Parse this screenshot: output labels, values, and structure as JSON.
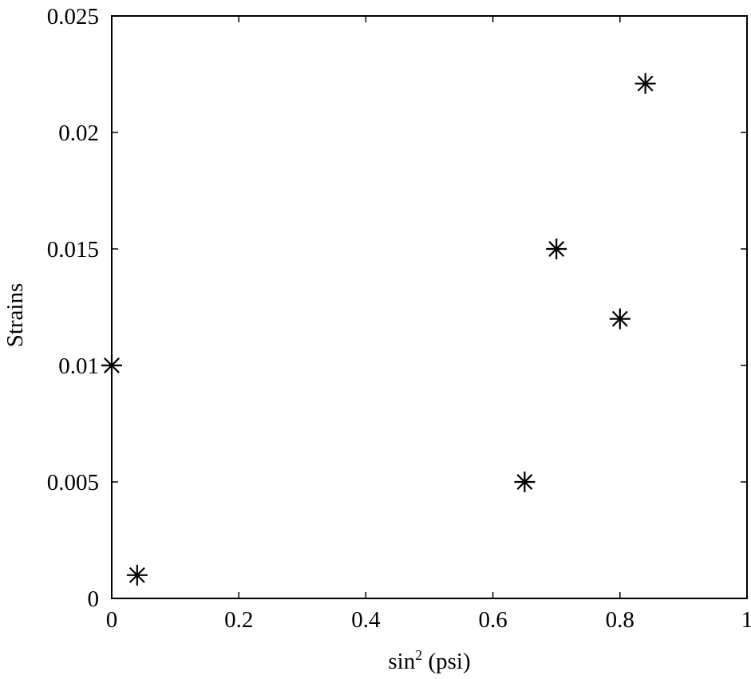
{
  "chart_data": {
    "type": "scatter",
    "title": "",
    "xlabel_main": "sin",
    "xlabel_sup": "2",
    "xlabel_rest": " (psi)",
    "ylabel": "Strains",
    "xlim": [
      0,
      1
    ],
    "ylim": [
      0,
      0.025
    ],
    "x_ticks": [
      0,
      0.2,
      0.4,
      0.6,
      0.8,
      1
    ],
    "x_tick_labels": [
      "0",
      "0.2",
      "0.4",
      "0.6",
      "0.8",
      "1"
    ],
    "y_ticks": [
      0,
      0.005,
      0.01,
      0.015,
      0.02,
      0.025
    ],
    "y_tick_labels": [
      "0",
      "0.005",
      "0.01",
      "0.015",
      "0.02",
      "0.025"
    ],
    "marker": "asterisk",
    "grid": false,
    "series": [
      {
        "x": [
          0,
          0.04,
          0.65,
          0.7,
          0.8,
          0.84
        ],
        "y": [
          0.01,
          0.001,
          0.005,
          0.015,
          0.012,
          0.0221
        ]
      }
    ]
  }
}
